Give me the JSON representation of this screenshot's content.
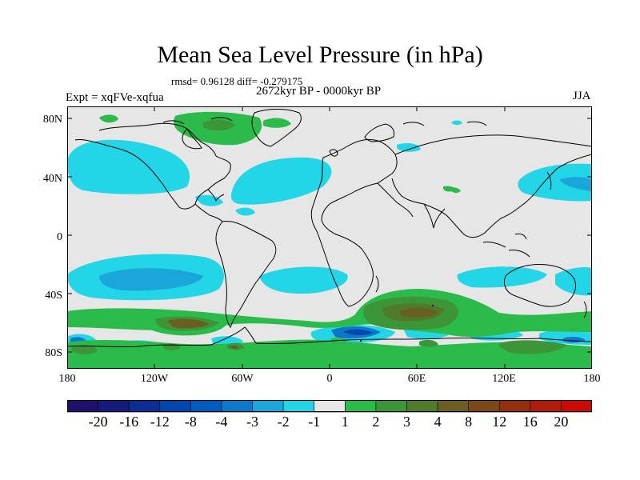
{
  "title": "Mean Sea Level Pressure (in hPa)",
  "stats_line": "rmsd= 0.96128 diff= -0.279175",
  "period_line": "2672kyr BP - 0000kyr BP",
  "experiment_label": "Expt = xqFVe-xqfua",
  "season_label": "JJA",
  "lat_ticks": [
    "80N",
    "40N",
    "0",
    "40S",
    "80S"
  ],
  "lon_ticks": [
    "180",
    "120W",
    "60W",
    "0",
    "60E",
    "120E",
    "180"
  ],
  "colorbar": {
    "labels": [
      "-20",
      "-16",
      "-12",
      "-8",
      "-4",
      "-3",
      "-2",
      "-1",
      "1",
      "2",
      "3",
      "4",
      "8",
      "12",
      "16",
      "20"
    ],
    "colors": [
      "#1d0f6b",
      "#15197a",
      "#0a2e95",
      "#0047ad",
      "#005bbf",
      "#0d78c9",
      "#1aa6d8",
      "#22d6e8",
      "#e6e6e6",
      "#2bbb4a",
      "#3c9638",
      "#4f7a2a",
      "#6a5e22",
      "#7c4818",
      "#94300f",
      "#b01c0a",
      "#cc0a05"
    ]
  },
  "colors": {
    "neutral": "#e6e6e6",
    "coast": "#000000"
  }
}
